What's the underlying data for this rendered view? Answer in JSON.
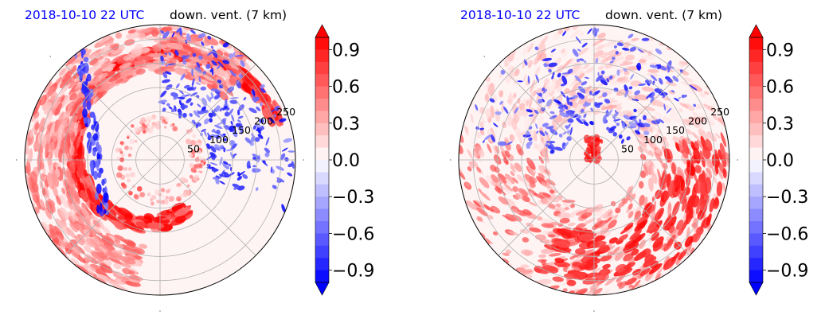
{
  "panels": [
    {
      "time_label": "2018-10-10 22 UTC",
      "field_label": "down. vent. (7 km)"
    },
    {
      "time_label": "2018-10-10 22 UTC",
      "field_label": "down. vent. (7 km)"
    }
  ],
  "colors": {
    "time_label": "#0000ff",
    "positive": "#ff0000",
    "negative": "#0000ff",
    "neutral": "#ffffff",
    "grid": "#b0b0b0"
  },
  "chart_data": [
    {
      "type": "heatmap",
      "projection": "polar",
      "title": "",
      "radial_ticks": [
        50,
        100,
        150,
        200,
        250
      ],
      "colorbar": {
        "ticks": [
          0.9,
          0.6,
          0.3,
          0.0,
          -0.3,
          -0.6,
          -0.9
        ],
        "tick_labels": [
          "0.9",
          "0.6",
          "0.3",
          "0.0",
          "−0.3",
          "−0.6",
          "−0.9"
        ],
        "range": [
          -1.0,
          1.0
        ],
        "levels": 20,
        "extend": "both",
        "colormap": "bwr"
      },
      "pattern": "spiral-band"
    },
    {
      "type": "heatmap",
      "projection": "polar",
      "title": "",
      "radial_ticks": [
        50,
        100,
        150,
        200,
        250
      ],
      "colorbar": {
        "ticks": [
          0.9,
          0.6,
          0.3,
          0.0,
          -0.3,
          -0.6,
          -0.9
        ],
        "tick_labels": [
          "0.9",
          "0.6",
          "0.3",
          "0.0",
          "−0.3",
          "−0.6",
          "−0.9"
        ],
        "range": [
          -1.0,
          1.0
        ],
        "levels": 20,
        "extend": "both",
        "colormap": "bwr"
      },
      "pattern": "outer-bands"
    }
  ]
}
